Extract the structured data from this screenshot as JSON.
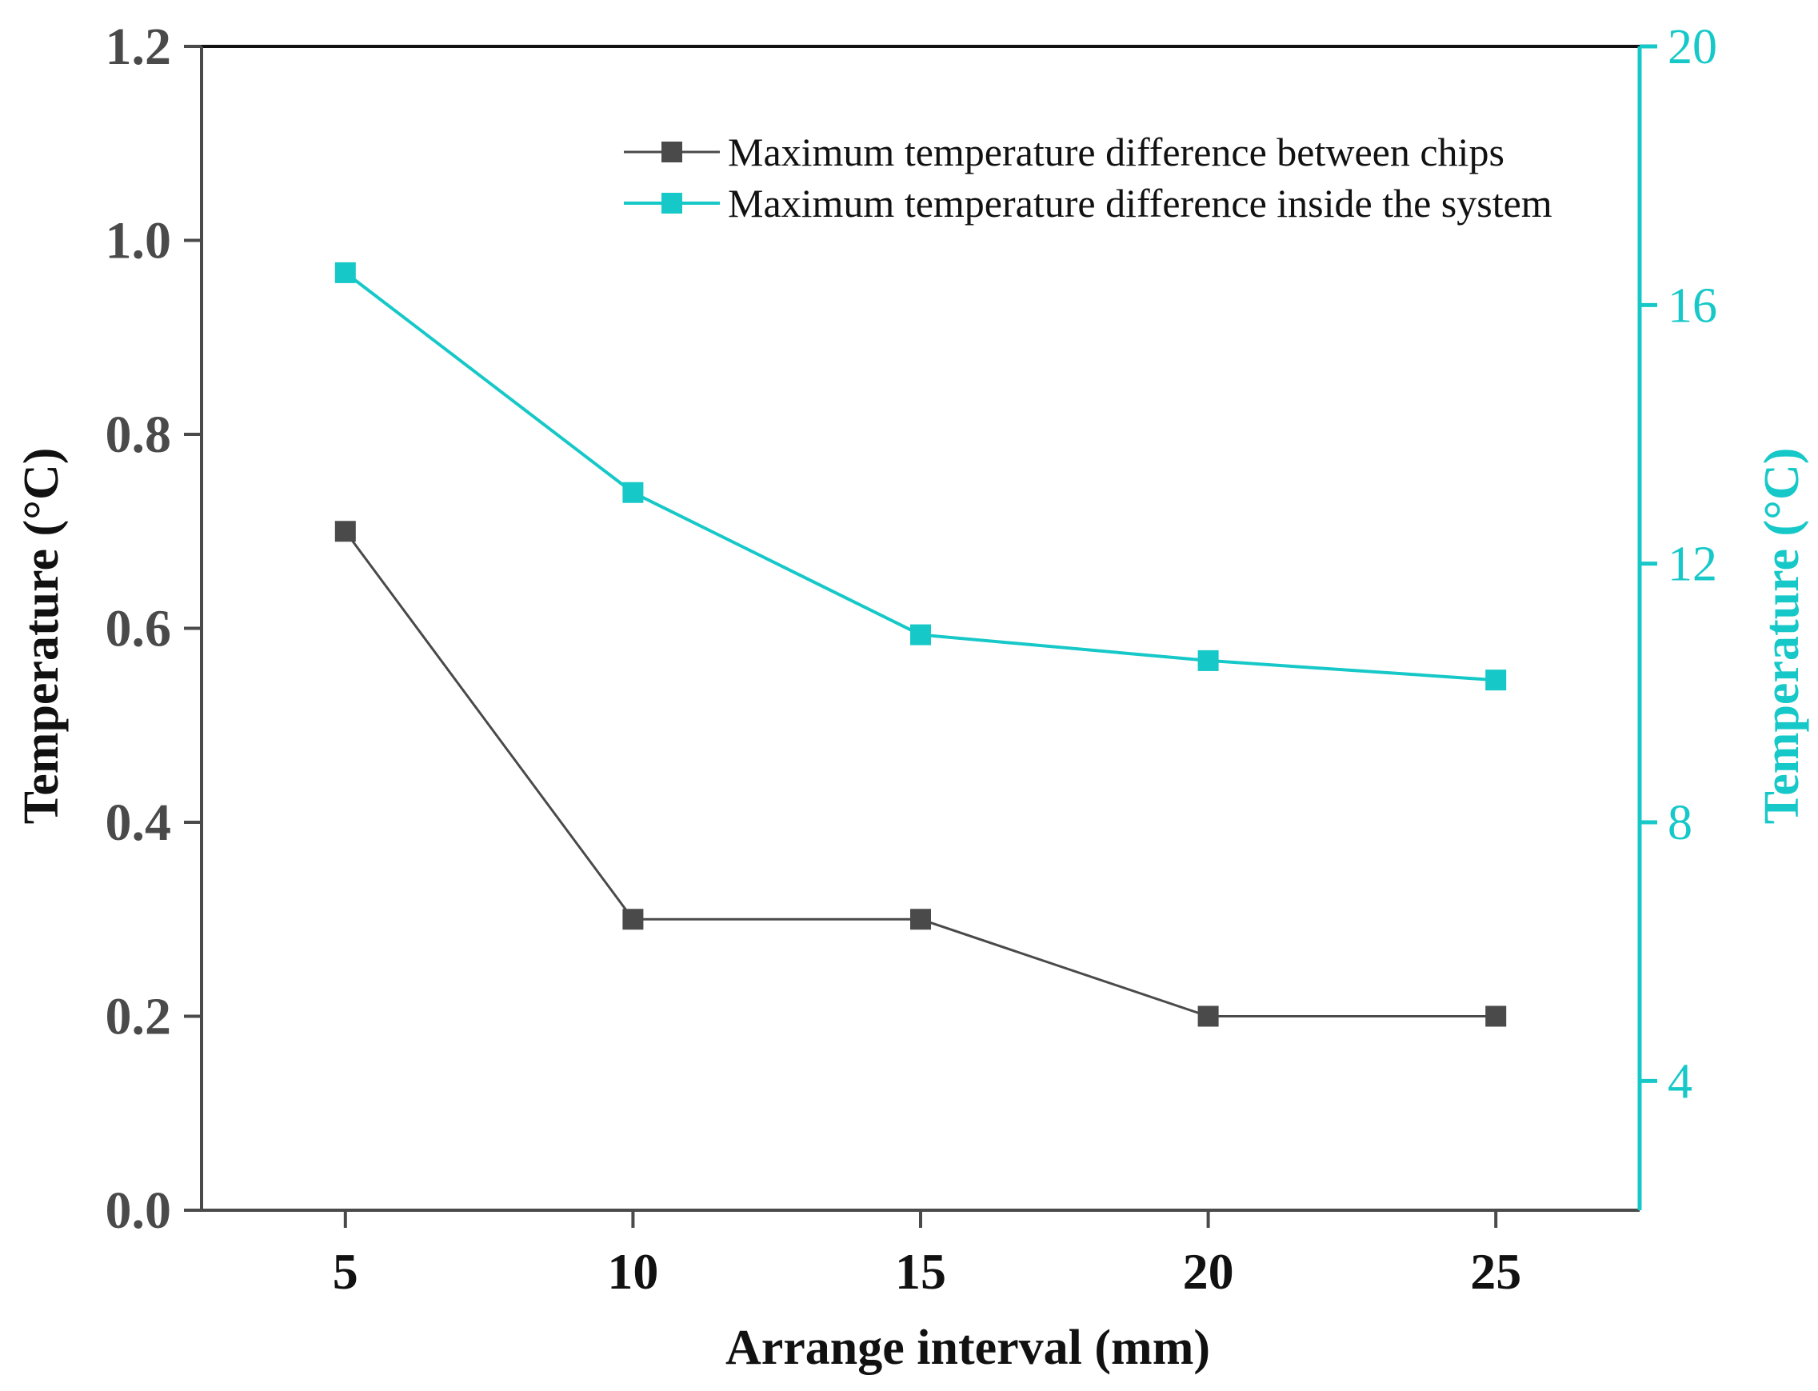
{
  "chart_data": {
    "type": "line",
    "x": [
      5,
      10,
      15,
      20,
      25
    ],
    "xlabel": "Arrange interval (mm)",
    "xlim": [
      2.5,
      27.5
    ],
    "xticks": [
      "5",
      "10",
      "15",
      "20",
      "25"
    ],
    "ylabel_left": "Temperature (°C)",
    "ylim_left": [
      0.0,
      1.2
    ],
    "yticks_left": [
      "0.0",
      "0.2",
      "0.4",
      "0.6",
      "0.8",
      "1.0",
      "1.2"
    ],
    "ylabel_right": "Temperature (°C)",
    "ylim_right": [
      2,
      20
    ],
    "yticks_right": [
      "4",
      "8",
      "12",
      "16",
      "20"
    ],
    "grid": false,
    "legend_position": "top-right",
    "series": [
      {
        "name": "Maximum temperature difference between chips",
        "axis": "left",
        "color": "#4a4a4a",
        "marker": "square",
        "values": [
          0.7,
          0.3,
          0.3,
          0.2,
          0.2
        ]
      },
      {
        "name": "Maximum temperature difference inside the system",
        "axis": "right",
        "color": "#17c8c8",
        "marker": "square",
        "values": [
          16.5,
          13.1,
          10.9,
          10.5,
          10.2
        ]
      }
    ]
  }
}
